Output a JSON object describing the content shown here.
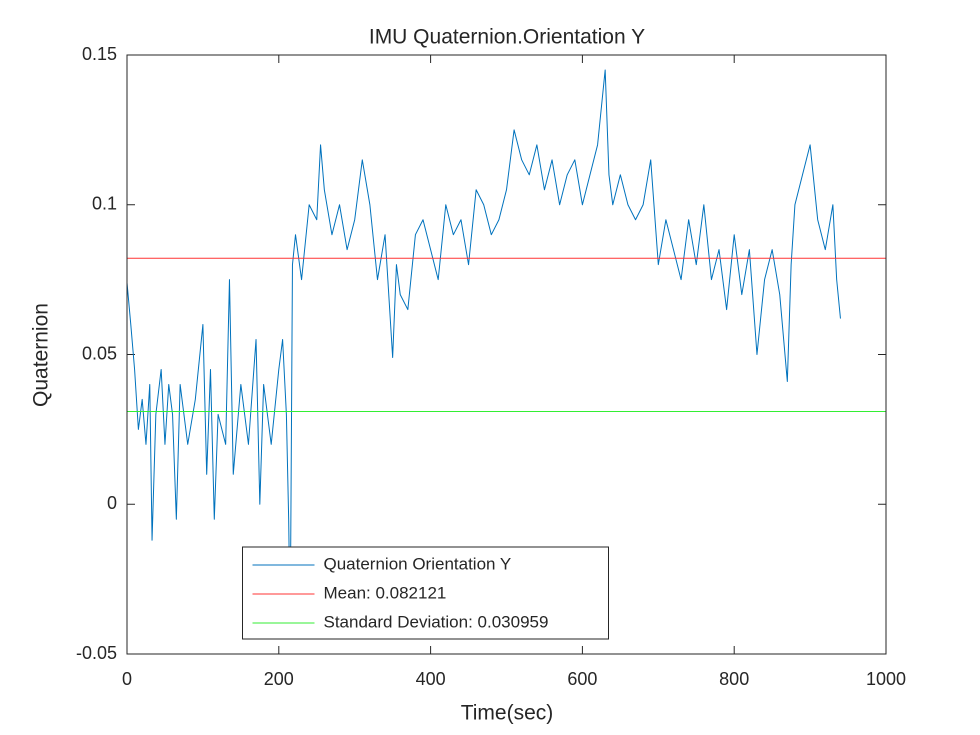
{
  "chart_data": {
    "type": "line",
    "title": "IMU Quaternion.Orientation Y",
    "x_label": "Time(sec)",
    "y_label": "Quaternion",
    "xlim": [
      0,
      1000
    ],
    "xticks": [
      0,
      200,
      400,
      600,
      800,
      1000
    ],
    "ylim": [
      -0.05,
      0.15
    ],
    "yticks": [
      -0.05,
      0,
      0.05,
      0.1,
      0.15
    ],
    "grid": false,
    "legend": "south",
    "series": [
      {
        "name": "Quaternion Orientation Y",
        "color": "#0072bd",
        "x": [
          0,
          5,
          10,
          15,
          20,
          25,
          30,
          33,
          38,
          45,
          50,
          55,
          60,
          65,
          70,
          80,
          90,
          100,
          105,
          110,
          115,
          120,
          130,
          135,
          140,
          150,
          160,
          170,
          175,
          180,
          190,
          200,
          205,
          210,
          213,
          215,
          218,
          222,
          230,
          240,
          250,
          255,
          260,
          270,
          280,
          290,
          300,
          310,
          320,
          330,
          340,
          350,
          355,
          360,
          370,
          380,
          390,
          400,
          410,
          420,
          430,
          440,
          450,
          460,
          470,
          480,
          490,
          500,
          510,
          520,
          530,
          540,
          550,
          560,
          570,
          580,
          590,
          600,
          610,
          620,
          630,
          635,
          640,
          650,
          660,
          670,
          680,
          690,
          700,
          710,
          720,
          730,
          740,
          750,
          760,
          770,
          780,
          790,
          800,
          810,
          820,
          830,
          840,
          850,
          860,
          870,
          875,
          880,
          890,
          900,
          910,
          920,
          930,
          935,
          940
        ],
        "values": [
          0.074,
          0.06,
          0.045,
          0.025,
          0.035,
          0.02,
          0.04,
          -0.012,
          0.03,
          0.045,
          0.02,
          0.04,
          0.03,
          -0.005,
          0.04,
          0.02,
          0.035,
          0.06,
          0.01,
          0.045,
          -0.005,
          0.03,
          0.02,
          0.075,
          0.01,
          0.04,
          0.02,
          0.055,
          0.0,
          0.04,
          0.02,
          0.045,
          0.055,
          0.03,
          -0.005,
          -0.042,
          0.08,
          0.09,
          0.075,
          0.1,
          0.095,
          0.12,
          0.105,
          0.09,
          0.1,
          0.085,
          0.095,
          0.115,
          0.1,
          0.075,
          0.09,
          0.049,
          0.08,
          0.07,
          0.065,
          0.09,
          0.095,
          0.085,
          0.075,
          0.1,
          0.09,
          0.095,
          0.08,
          0.105,
          0.1,
          0.09,
          0.095,
          0.105,
          0.125,
          0.115,
          0.11,
          0.12,
          0.105,
          0.115,
          0.1,
          0.11,
          0.115,
          0.1,
          0.11,
          0.12,
          0.145,
          0.11,
          0.1,
          0.11,
          0.1,
          0.095,
          0.1,
          0.115,
          0.08,
          0.095,
          0.085,
          0.075,
          0.095,
          0.08,
          0.1,
          0.075,
          0.085,
          0.065,
          0.09,
          0.07,
          0.085,
          0.05,
          0.075,
          0.085,
          0.07,
          0.041,
          0.08,
          0.1,
          0.11,
          0.12,
          0.095,
          0.085,
          0.1,
          0.075,
          0.062
        ]
      },
      {
        "name": "Mean: 0.082121",
        "color": "#ff3333",
        "x": [
          0,
          1000
        ],
        "values": [
          0.082121,
          0.082121
        ]
      },
      {
        "name": "Standard Deviation: 0.030959",
        "color": "#33ee33",
        "x": [
          0,
          1000
        ],
        "values": [
          0.030959,
          0.030959
        ]
      }
    ]
  }
}
